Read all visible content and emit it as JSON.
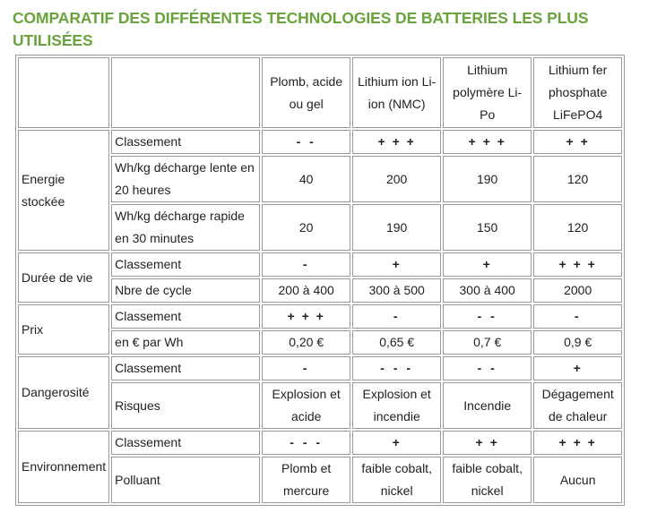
{
  "title": "COMPARATIF DES DIFFÉRENTES TECHNOLOGIES DE BATTERIES LES PLUS UTILISÉES",
  "colors": {
    "title": "#6aa33b",
    "border": "#9a9a9a"
  },
  "header": [
    "Plomb, acide ou gel",
    "Lithium ion Li-ion (NMC)",
    "Lithium polymère Li-Po",
    "Lithium fer phosphate LiFePO4"
  ],
  "groups": [
    {
      "label": "Energie stockée",
      "rows": [
        {
          "label": "Classement",
          "values": [
            "- -",
            "+ + +",
            "+ + +",
            "+ +"
          ]
        },
        {
          "label": "Wh/kg décharge lente en 20 heures",
          "values": [
            "40",
            "200",
            "190",
            "120"
          ]
        },
        {
          "label": "Wh/kg décharge rapide en 30 minutes",
          "values": [
            "20",
            "190",
            "150",
            "120"
          ]
        }
      ]
    },
    {
      "label": "Durée de vie",
      "rows": [
        {
          "label": "Classement",
          "values": [
            "-",
            "+",
            "+",
            "+ + +"
          ]
        },
        {
          "label": "Nbre de cycle",
          "values": [
            "200 à 400",
            "300 à 500",
            "300 à 400",
            "2000"
          ]
        }
      ]
    },
    {
      "label": "Prix",
      "rows": [
        {
          "label": "Classement",
          "values": [
            "+ + +",
            "-",
            "- -",
            "-"
          ]
        },
        {
          "label": "en € par Wh",
          "values": [
            "0,20 €",
            "0,65 €",
            "0,7 €",
            "0,9 €"
          ]
        }
      ]
    },
    {
      "label": "Dangerosité",
      "rows": [
        {
          "label": "Classement",
          "values": [
            "-",
            "- - -",
            "- -",
            "+"
          ]
        },
        {
          "label": "Risques",
          "values": [
            "Explosion et acide",
            "Explosion et incendie",
            "Incendie",
            "Dégagement de chaleur"
          ]
        }
      ]
    },
    {
      "label": "Environnement",
      "rows": [
        {
          "label": "Classement",
          "values": [
            "- - -",
            "+",
            "+ +",
            "+ + +"
          ]
        },
        {
          "label": "Polluant",
          "values": [
            "Plomb et mercure",
            "faible cobalt, nickel",
            "faible cobalt, nickel",
            "Aucun"
          ]
        }
      ]
    }
  ]
}
